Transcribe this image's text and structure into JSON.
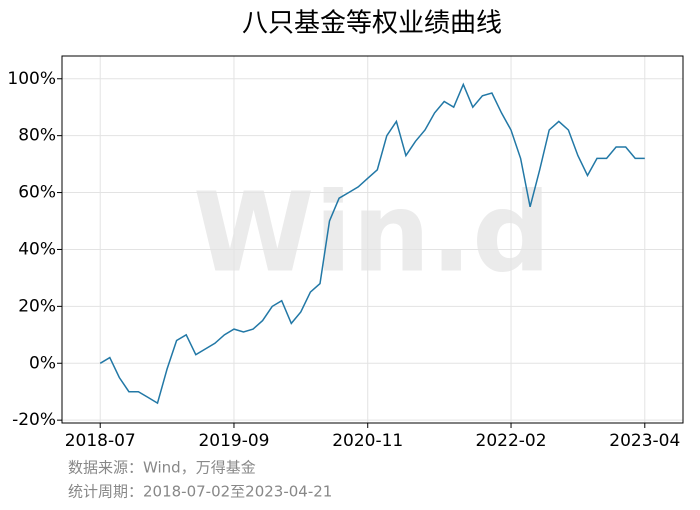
{
  "chart_data": {
    "type": "line",
    "title": "八只基金等权业绩曲线",
    "watermark": "Win.d",
    "source": "数据来源：Wind，万得基金",
    "period": "统计周期：2018-07-02至2023-04-21",
    "x": [
      "2018-07",
      "2018-08",
      "2018-09",
      "2018-10",
      "2018-11",
      "2018-12",
      "2019-01",
      "2019-02",
      "2019-03",
      "2019-04",
      "2019-05",
      "2019-06",
      "2019-07",
      "2019-08",
      "2019-09",
      "2019-10",
      "2019-11",
      "2019-12",
      "2020-01",
      "2020-02",
      "2020-03",
      "2020-04",
      "2020-05",
      "2020-06",
      "2020-07",
      "2020-08",
      "2020-09",
      "2020-10",
      "2020-11",
      "2020-12",
      "2021-01",
      "2021-02",
      "2021-03",
      "2021-04",
      "2021-05",
      "2021-06",
      "2021-07",
      "2021-08",
      "2021-09",
      "2021-10",
      "2021-11",
      "2021-12",
      "2022-01",
      "2022-02",
      "2022-03",
      "2022-04",
      "2022-05",
      "2022-06",
      "2022-07",
      "2022-08",
      "2022-09",
      "2022-10",
      "2022-11",
      "2022-12",
      "2023-01",
      "2023-02",
      "2023-03",
      "2023-04"
    ],
    "series": [
      {
        "color": "#2278a6",
        "values": [
          0,
          2,
          -5,
          -10,
          -10,
          -12,
          -14,
          -2,
          8,
          10,
          3,
          5,
          7,
          10,
          12,
          11,
          12,
          15,
          20,
          22,
          14,
          18,
          25,
          28,
          50,
          58,
          60,
          62,
          65,
          68,
          80,
          85,
          73,
          78,
          82,
          88,
          92,
          90,
          98,
          90,
          94,
          95,
          88,
          82,
          72,
          55,
          68,
          82,
          85,
          82,
          73,
          66,
          72,
          72,
          76,
          76,
          72,
          72
        ]
      }
    ],
    "xlim": [
      "2018-03",
      "2023-08"
    ],
    "xticks": [
      "2018-07",
      "2019-09",
      "2020-11",
      "2022-02",
      "2023-04"
    ],
    "ylim": [
      -21,
      108
    ],
    "yticks": [
      {
        "value": -20,
        "label": "-20%"
      },
      {
        "value": 0,
        "label": "0%"
      },
      {
        "value": 20,
        "label": "20%"
      },
      {
        "value": 40,
        "label": "40%"
      },
      {
        "value": 60,
        "label": "60%"
      },
      {
        "value": 80,
        "label": "80%"
      },
      {
        "value": 100,
        "label": "100%"
      }
    ],
    "grid": true
  }
}
